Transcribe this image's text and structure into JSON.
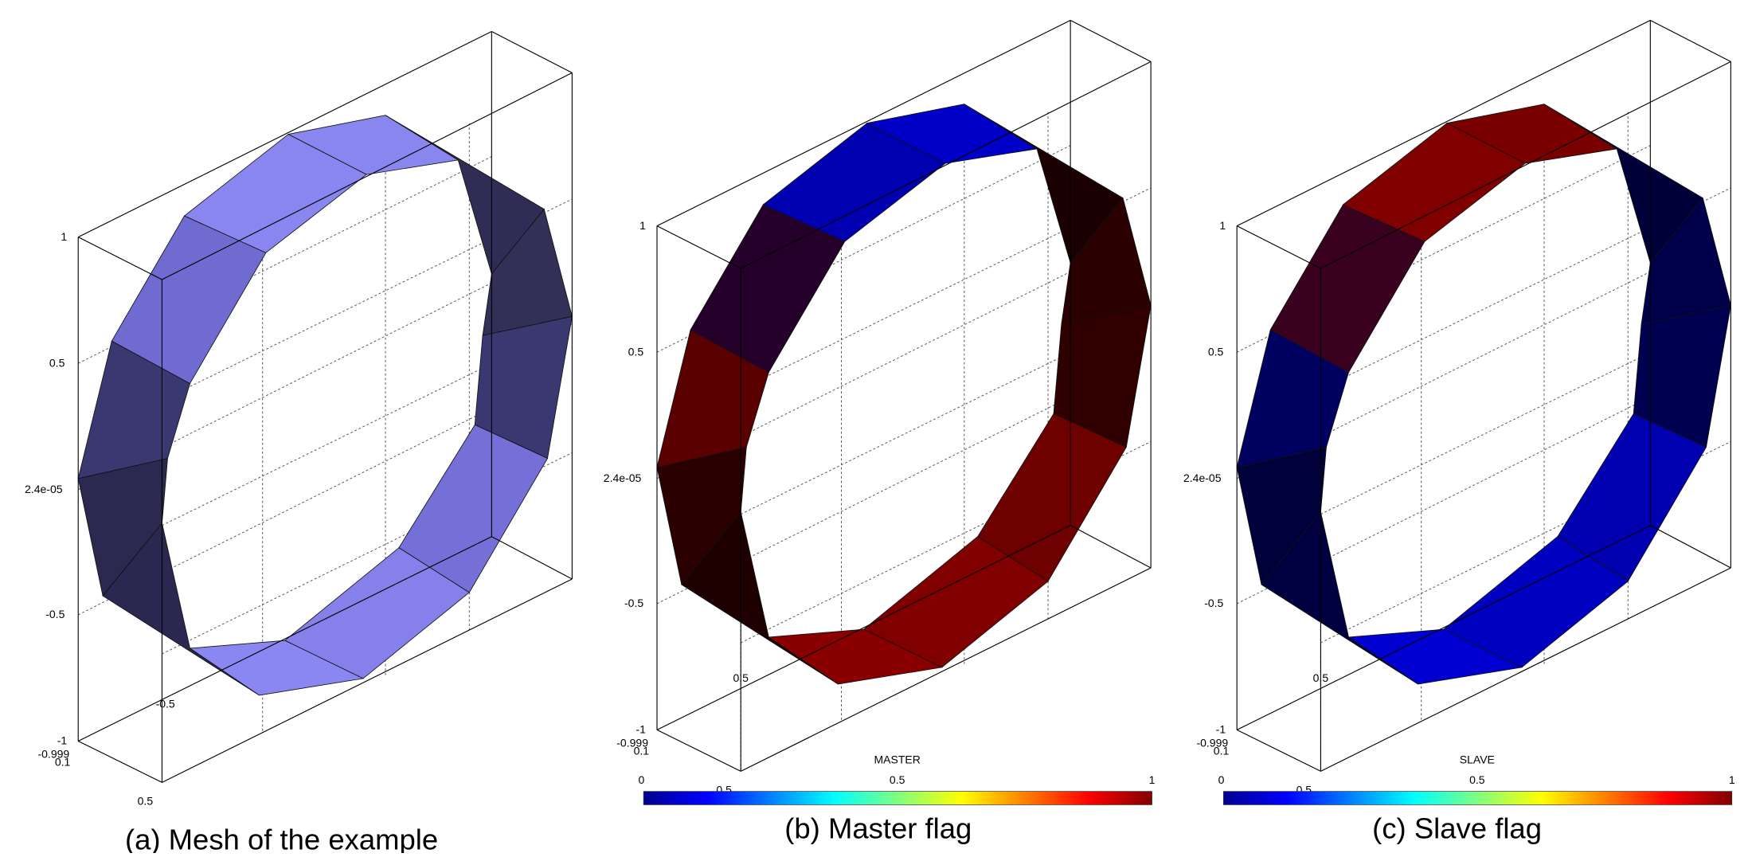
{
  "panels": [
    {
      "caption": "(a) Mesh of the example",
      "axis_ticks": [
        "1",
        "0.5",
        "2.4e-05",
        "-0.5",
        "-1",
        "-0.999",
        "0.1",
        "0.5",
        "-0.5"
      ]
    },
    {
      "caption": "(b) Master flag",
      "axis_ticks": [
        "1",
        "0.5",
        "2.4e-05",
        "-0.5",
        "-1",
        "-0.999",
        "0.1",
        "0.5",
        "0.5"
      ],
      "colorbar": {
        "title": "MASTER",
        "ticks": [
          "0",
          "0.5",
          "1"
        ]
      }
    },
    {
      "caption": "(c) Slave flag",
      "axis_ticks": [
        "1",
        "0.5",
        "2.4e-05",
        "-0.5",
        "-1",
        "-0.999",
        "0.1",
        "0.5",
        "0.5"
      ],
      "colorbar": {
        "title": "SLAVE",
        "ticks": [
          "0",
          "0.5",
          "1"
        ]
      }
    }
  ]
}
